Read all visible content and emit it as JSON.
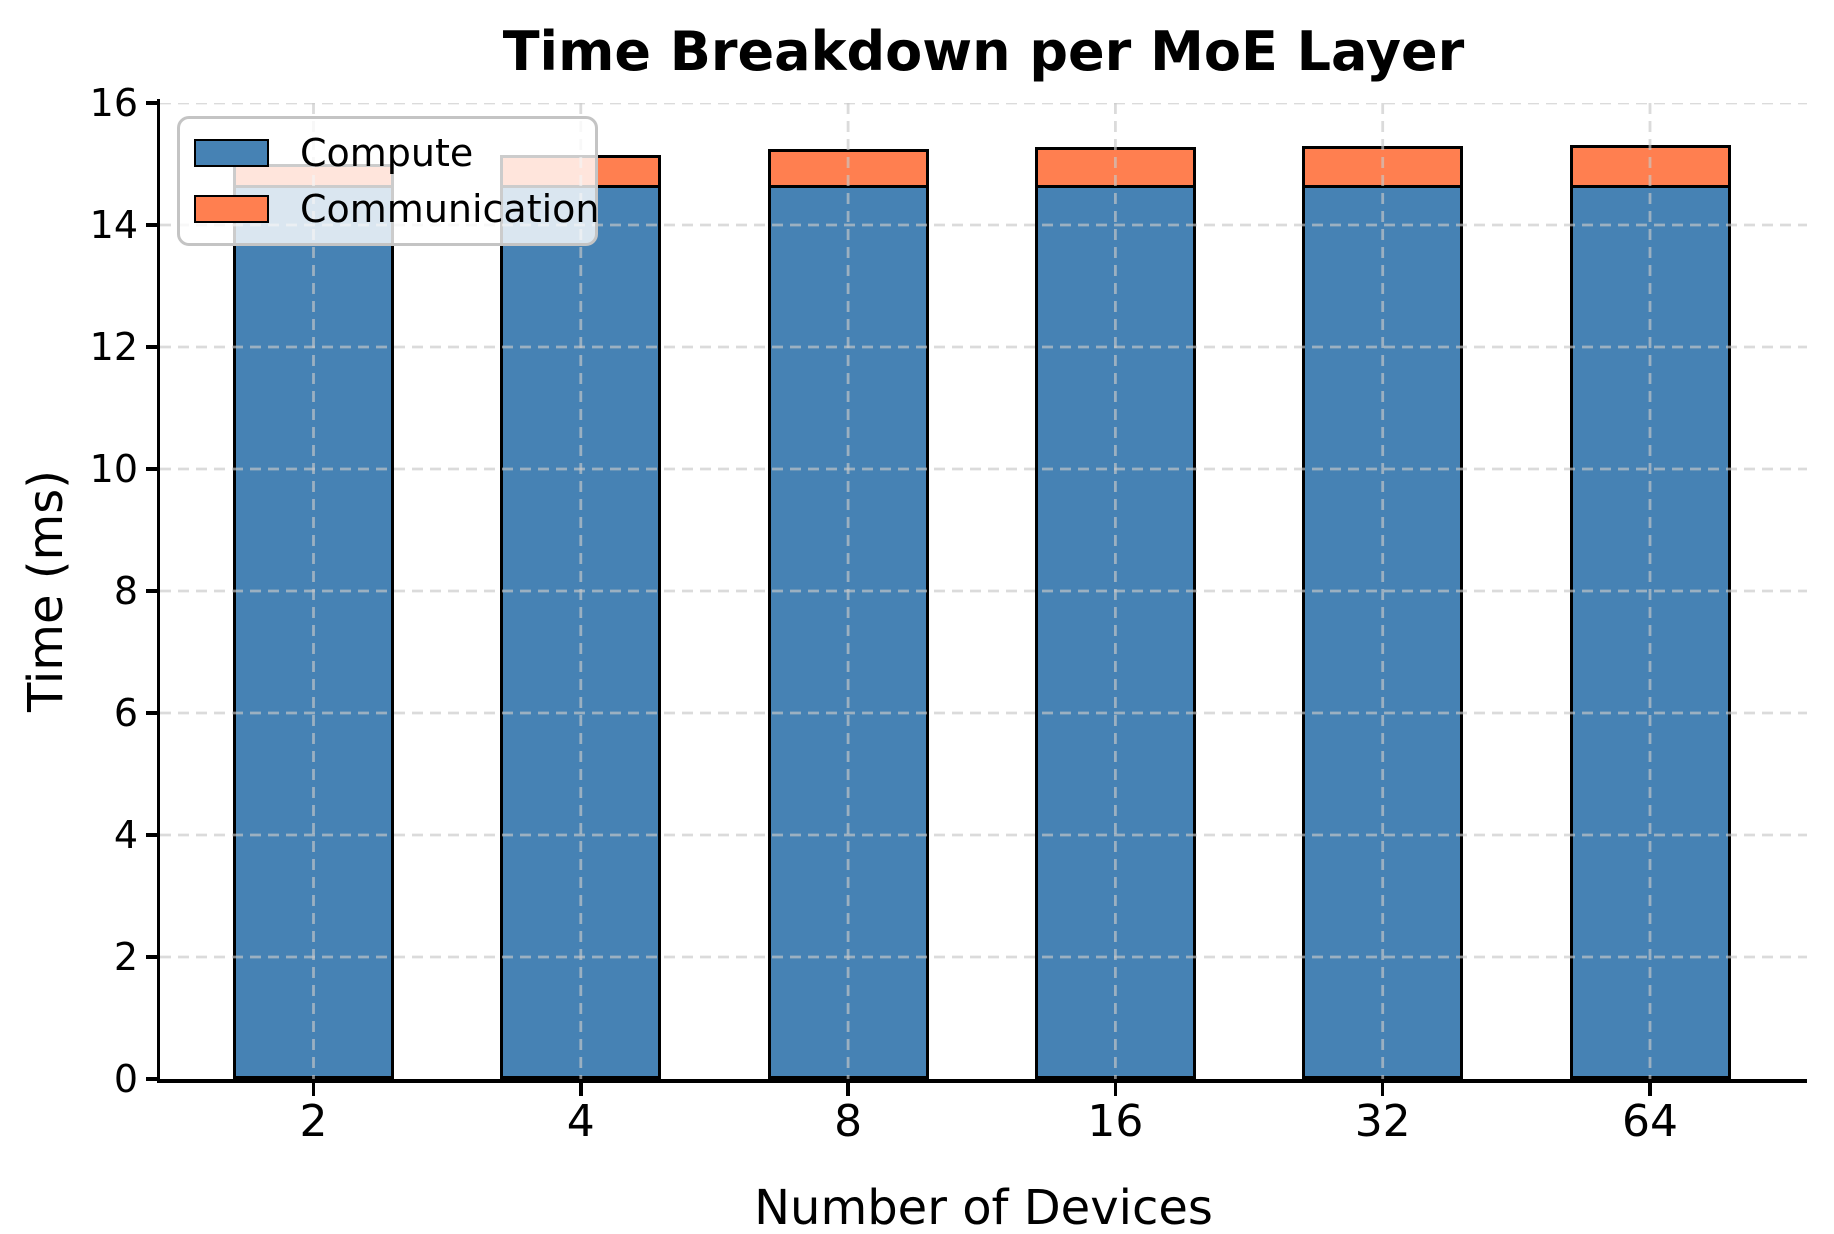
{
  "chart_data": {
    "type": "bar",
    "stacked": true,
    "title": "Time Breakdown per MoE Layer",
    "xlabel": "Number of Devices",
    "ylabel": "Time (ms)",
    "categories": [
      "2",
      "4",
      "8",
      "16",
      "32",
      "64"
    ],
    "series": [
      {
        "name": "Compute",
        "color": "#4682B4",
        "values": [
          14.65,
          14.65,
          14.65,
          14.65,
          14.65,
          14.65
        ]
      },
      {
        "name": "Communication",
        "color": "#FF7F50",
        "values": [
          0.35,
          0.5,
          0.6,
          0.63,
          0.65,
          0.67
        ]
      }
    ],
    "ylim": [
      0,
      16
    ],
    "yticks": [
      0,
      2,
      4,
      6,
      8,
      10,
      12,
      14,
      16
    ],
    "grid": true,
    "grid_style": "dashed",
    "grid_color": "#c9c9c9",
    "bar_edge_color": "#000000",
    "legend_position": "upper left",
    "background": "#ffffff"
  }
}
